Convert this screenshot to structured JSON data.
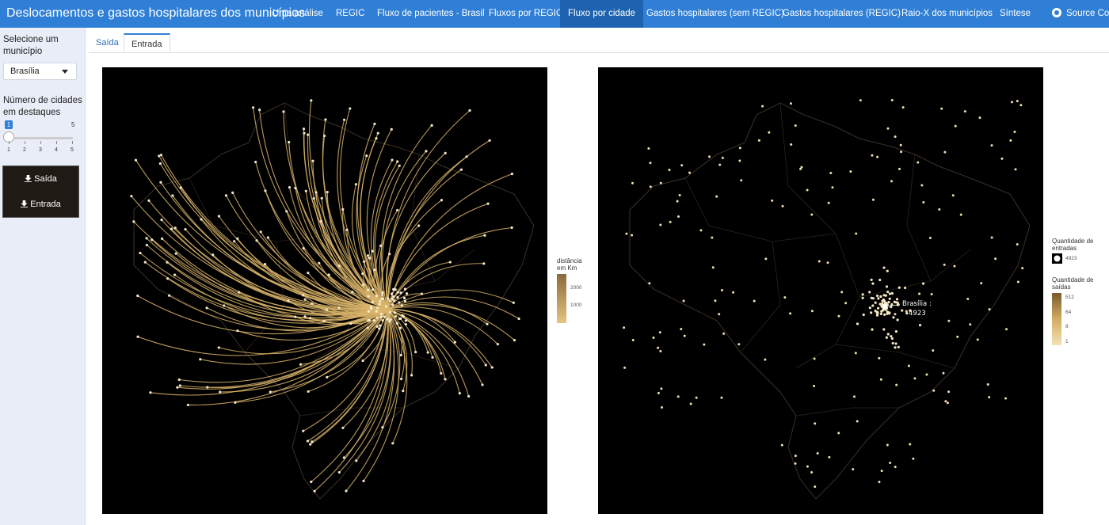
{
  "navbar": {
    "brand": "Deslocamentos e gastos hospitalares dos municípios",
    "items": [
      {
        "label": "Uma análise",
        "active": false
      },
      {
        "label": "REGIC",
        "active": false
      },
      {
        "label": "Fluxo de pacientes - Brasil",
        "active": false
      },
      {
        "label": "Fluxos por REGIC",
        "active": false
      },
      {
        "label": "Fluxo por cidade",
        "active": true
      },
      {
        "label": "Gastos hospitalares (sem REGIC)",
        "active": false
      },
      {
        "label": "Gastos hospitalares (REGIC)",
        "active": false
      },
      {
        "label": "Raio-X dos municípios",
        "active": false
      },
      {
        "label": "Síntese",
        "active": false
      }
    ],
    "source_label": "Source Code",
    "source_icon": "github-icon"
  },
  "sidebar": {
    "municipio_label": "Selecione um município",
    "municipio_value": "Brasília",
    "cidades_label": "Número de cidades em destaques",
    "slider": {
      "value": "1",
      "max_label": "5",
      "ticks": [
        "1",
        "2",
        "3",
        "4",
        "5"
      ],
      "level": 1
    },
    "download_saida": "Saída",
    "download_entrada": "Entrada",
    "download_icon": "download-icon"
  },
  "tabs": [
    {
      "label": "Saída",
      "active": false
    },
    {
      "label": "Entrada",
      "active": true
    }
  ],
  "left_map": {
    "legend_title": "distância em Km",
    "legend_values": [
      "2000",
      "1000"
    ],
    "gradient": [
      "#8a6a3a",
      "#d9b772"
    ]
  },
  "right_map": {
    "legend_entradas_title": "Quantidade de entradas",
    "legend_entradas_value": "4923",
    "legend_saidas_title": "Quantidade de saídas",
    "legend_saidas_values": [
      "512",
      "64",
      "8",
      "1"
    ],
    "annotation_city": "Brasília :",
    "annotation_value": "4923",
    "gradient": [
      "#7a5a2e",
      "#efd9a8"
    ]
  },
  "colors": {
    "nav_bg": "#2f7fd6",
    "nav_active": "#1e63b0",
    "map_bg": "#000000",
    "flow": "#d9b46a"
  }
}
